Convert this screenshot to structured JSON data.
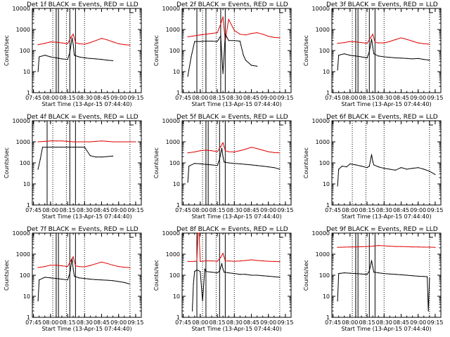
{
  "colors": {
    "events": "#000000",
    "lld": "#e00000",
    "axis": "#000000",
    "background": "#ffffff"
  },
  "shared": {
    "ylabel": "Counts/sec",
    "xlabel": "Start Time (13-Apr-15 07:44:40)",
    "x_ticks": [
      "07:45",
      "08:00",
      "08:15",
      "08:30",
      "08:45",
      "09:00",
      "09:15"
    ],
    "y_ticks": [
      "1",
      "10",
      "100",
      "1000",
      "10000"
    ],
    "y_scale": "log",
    "ylim": [
      1,
      10000
    ]
  },
  "chart_data": [
    {
      "type": "line",
      "title": "Det 1f BLACK = Events, RED = LLD",
      "x_minutes_range": [
        0,
        35
      ],
      "xlim": [
        "07:44",
        "09:20"
      ],
      "ylim": [
        1,
        10000
      ],
      "y_scale": "log",
      "dotted_lines": [
        "08:02",
        "08:14",
        "08:30",
        "09:10"
      ],
      "solid_lines": [
        "08:05",
        "08:07",
        "08:17",
        "08:22"
      ],
      "series": [
        {
          "color": "red",
          "x": [
            "07:49",
            "07:55",
            "08:00",
            "08:05",
            "08:10",
            "08:15",
            "08:18",
            "08:20",
            "08:22",
            "08:25",
            "08:30",
            "08:35",
            "08:40",
            "08:45",
            "08:50",
            "08:55",
            "09:00",
            "09:05",
            "09:10"
          ],
          "y": [
            190,
            220,
            260,
            250,
            230,
            210,
            420,
            600,
            240,
            210,
            200,
            240,
            300,
            380,
            320,
            260,
            210,
            190,
            180
          ]
        },
        {
          "color": "black",
          "x": [
            "07:49",
            "07:50",
            "07:55",
            "08:00",
            "08:05",
            "08:10",
            "08:15",
            "08:17",
            "08:19",
            "08:20",
            "08:21",
            "08:25",
            "08:30",
            "08:35",
            "08:40",
            "08:45",
            "08:50",
            "08:55"
          ],
          "y": [
            10,
            50,
            60,
            50,
            45,
            40,
            38,
            80,
            400,
            200,
            60,
            50,
            45,
            42,
            40,
            38,
            35,
            33
          ]
        }
      ]
    },
    {
      "type": "line",
      "title": "Det 2f BLACK = Events, RED = LLD",
      "xlim": [
        "07:44",
        "09:20"
      ],
      "ylim": [
        1,
        10000
      ],
      "y_scale": "log",
      "dotted_lines": [
        "08:02",
        "08:14",
        "08:30",
        "09:10"
      ],
      "solid_lines": [
        "07:57",
        "08:05",
        "08:18",
        "08:22"
      ],
      "series": [
        {
          "color": "red",
          "x": [
            "07:49",
            "07:55",
            "08:00",
            "08:05",
            "08:10",
            "08:15",
            "08:18",
            "08:20",
            "08:22",
            "08:25",
            "08:30",
            "08:35",
            "08:40",
            "08:45",
            "08:50",
            "08:55",
            "09:00",
            "09:05",
            "09:10"
          ],
          "y": [
            450,
            500,
            550,
            600,
            650,
            700,
            1800,
            4000,
            300,
            3000,
            900,
            600,
            550,
            650,
            700,
            600,
            480,
            420,
            400
          ]
        },
        {
          "color": "black",
          "x": [
            "07:49",
            "07:52",
            "07:55",
            "08:00",
            "08:05",
            "08:10",
            "08:15",
            "08:18",
            "08:20",
            "08:22",
            "08:25",
            "08:30",
            "08:35",
            "08:38",
            "08:40",
            "08:45",
            "08:50"
          ],
          "y": [
            6,
            50,
            270,
            270,
            280,
            280,
            270,
            500,
            8,
            600,
            300,
            300,
            280,
            60,
            35,
            20,
            18
          ]
        }
      ]
    },
    {
      "type": "line",
      "title": "Det 3f BLACK = Events, RED = LLD",
      "xlim": [
        "07:44",
        "09:20"
      ],
      "ylim": [
        1,
        10000
      ],
      "y_scale": "log",
      "dotted_lines": [
        "08:02",
        "08:14",
        "08:30",
        "09:10"
      ],
      "solid_lines": [
        "08:05",
        "08:07",
        "08:17",
        "08:22"
      ],
      "series": [
        {
          "color": "red",
          "x": [
            "07:49",
            "07:55",
            "08:00",
            "08:05",
            "08:10",
            "08:15",
            "08:18",
            "08:20",
            "08:22",
            "08:25",
            "08:30",
            "08:35",
            "08:40",
            "08:45",
            "08:50",
            "08:55",
            "09:00",
            "09:05",
            "09:10"
          ],
          "y": [
            220,
            240,
            270,
            260,
            240,
            220,
            400,
            600,
            250,
            230,
            230,
            270,
            330,
            400,
            340,
            280,
            230,
            210,
            200
          ]
        },
        {
          "color": "black",
          "x": [
            "07:49",
            "07:50",
            "07:55",
            "08:00",
            "08:05",
            "08:10",
            "08:15",
            "08:17",
            "08:19",
            "08:20",
            "08:21",
            "08:25",
            "08:30",
            "08:35",
            "08:40",
            "08:45",
            "08:50",
            "08:55",
            "09:00",
            "09:05",
            "09:10"
          ],
          "y": [
            12,
            60,
            70,
            60,
            55,
            50,
            45,
            90,
            350,
            150,
            70,
            55,
            50,
            48,
            45,
            44,
            42,
            40,
            42,
            38,
            35
          ]
        }
      ]
    },
    {
      "type": "line",
      "title": "Det 4f BLACK = Events, RED = LLD",
      "xlim": [
        "07:44",
        "09:20"
      ],
      "ylim": [
        1,
        10000
      ],
      "y_scale": "log",
      "dotted_lines": [
        "08:02",
        "08:14",
        "08:30",
        "09:10"
      ],
      "solid_lines": [
        "07:57",
        "08:17",
        "08:22"
      ],
      "series": [
        {
          "color": "red",
          "x": [
            "07:49",
            "07:55",
            "08:00",
            "08:05",
            "08:10",
            "08:15",
            "08:20",
            "08:25",
            "08:30",
            "08:35",
            "08:40",
            "08:45",
            "08:50",
            "08:55",
            "09:00",
            "09:05",
            "09:10",
            "09:15"
          ],
          "y": [
            1000,
            1050,
            1100,
            1100,
            1100,
            1050,
            1000,
            1000,
            1000,
            1000,
            1050,
            1100,
            1050,
            1000,
            1000,
            1000,
            1000,
            1000
          ]
        },
        {
          "color": "black",
          "x": [
            "07:49",
            "07:51",
            "07:53",
            "08:00",
            "08:05",
            "08:10",
            "08:15",
            "08:20",
            "08:25",
            "08:30",
            "08:35",
            "08:40",
            "08:45",
            "08:50",
            "08:55"
          ],
          "y": [
            50,
            150,
            550,
            560,
            560,
            560,
            560,
            560,
            560,
            560,
            220,
            190,
            190,
            200,
            210
          ]
        }
      ]
    },
    {
      "type": "line",
      "title": "Det 5f BLACK = Events, RED = LLD",
      "xlim": [
        "07:44",
        "09:20"
      ],
      "ylim": [
        1,
        10000
      ],
      "y_scale": "log",
      "dotted_lines": [
        "08:02",
        "08:14",
        "08:30",
        "09:10"
      ],
      "solid_lines": [
        "08:05",
        "08:07",
        "08:17",
        "08:22"
      ],
      "series": [
        {
          "color": "red",
          "x": [
            "07:49",
            "07:55",
            "08:00",
            "08:05",
            "08:10",
            "08:15",
            "08:18",
            "08:20",
            "08:22",
            "08:25",
            "08:30",
            "08:35",
            "08:40",
            "08:45",
            "08:50",
            "08:55",
            "09:00",
            "09:05",
            "09:10"
          ],
          "y": [
            300,
            330,
            380,
            400,
            380,
            340,
            600,
            900,
            380,
            340,
            330,
            380,
            450,
            550,
            480,
            400,
            340,
            310,
            300
          ]
        },
        {
          "color": "black",
          "x": [
            "07:49",
            "07:50",
            "07:55",
            "08:00",
            "08:05",
            "08:10",
            "08:15",
            "08:17",
            "08:19",
            "08:20",
            "08:21",
            "08:25",
            "08:30",
            "08:35",
            "08:40",
            "08:45",
            "08:50",
            "08:55",
            "09:00",
            "09:05",
            "09:10"
          ],
          "y": [
            12,
            70,
            95,
            90,
            85,
            80,
            75,
            150,
            500,
            200,
            110,
            100,
            95,
            90,
            85,
            80,
            75,
            70,
            65,
            60,
            50
          ]
        }
      ]
    },
    {
      "type": "line",
      "title": "Det 6f BLACK = Events, RED = LLD",
      "xlim": [
        "07:44",
        "09:20"
      ],
      "ylim": [
        1,
        10000
      ],
      "y_scale": "log",
      "dotted_lines": [
        "08:02",
        "08:14",
        "08:30",
        "09:10"
      ],
      "solid_lines": [],
      "series": [
        {
          "color": "black",
          "x": [
            "07:49",
            "07:50",
            "07:53",
            "07:57",
            "08:00",
            "08:05",
            "08:10",
            "08:15",
            "08:17",
            "08:19",
            "08:20",
            "08:21",
            "08:25",
            "08:30",
            "08:35",
            "08:40",
            "08:45",
            "08:50",
            "08:55",
            "09:00",
            "09:05",
            "09:10",
            "09:15"
          ],
          "y": [
            8,
            50,
            70,
            65,
            90,
            80,
            70,
            60,
            70,
            250,
            120,
            80,
            65,
            55,
            50,
            45,
            60,
            50,
            55,
            60,
            50,
            40,
            28
          ]
        }
      ]
    },
    {
      "type": "line",
      "title": "Det 7f BLACK = Events, RED = LLD",
      "xlim": [
        "07:44",
        "09:20"
      ],
      "ylim": [
        1,
        10000
      ],
      "y_scale": "log",
      "dotted_lines": [
        "08:02",
        "08:14",
        "08:30",
        "09:10"
      ],
      "solid_lines": [
        "08:05",
        "08:07",
        "08:17",
        "08:22"
      ],
      "series": [
        {
          "color": "red",
          "x": [
            "07:49",
            "07:55",
            "08:00",
            "08:05",
            "08:10",
            "08:15",
            "08:18",
            "08:20",
            "08:22",
            "08:25",
            "08:30",
            "08:35",
            "08:40",
            "08:45",
            "08:50",
            "08:55",
            "09:00",
            "09:05",
            "09:10"
          ],
          "y": [
            230,
            260,
            300,
            300,
            280,
            260,
            500,
            750,
            280,
            260,
            250,
            290,
            350,
            420,
            360,
            300,
            260,
            240,
            230
          ]
        },
        {
          "color": "black",
          "x": [
            "07:49",
            "07:50",
            "07:55",
            "08:00",
            "08:05",
            "08:10",
            "08:15",
            "08:17",
            "08:19",
            "08:20",
            "08:21",
            "08:25",
            "08:30",
            "08:35",
            "08:40",
            "08:45",
            "08:50",
            "08:55",
            "09:00",
            "09:05",
            "09:10"
          ],
          "y": [
            6,
            60,
            80,
            75,
            70,
            65,
            60,
            120,
            600,
            200,
            90,
            75,
            70,
            65,
            62,
            60,
            58,
            55,
            50,
            45,
            38
          ]
        }
      ]
    },
    {
      "type": "line",
      "title": "Det 8f BLACK = Events, RED = LLD",
      "xlim": [
        "07:44",
        "09:20"
      ],
      "ylim": [
        1,
        10000
      ],
      "y_scale": "log",
      "dotted_lines": [
        "08:02",
        "08:14",
        "08:30",
        "09:10"
      ],
      "solid_lines": [
        "07:57",
        "08:05",
        "08:17",
        "08:22"
      ],
      "series": [
        {
          "color": "red",
          "x": [
            "07:49",
            "07:55",
            "07:57",
            "07:58",
            "07:59",
            "08:00",
            "08:05",
            "08:10",
            "08:15",
            "08:18",
            "08:20",
            "08:22",
            "08:25",
            "08:30",
            "08:35",
            "08:40",
            "08:45",
            "08:50",
            "08:55",
            "09:00",
            "09:05",
            "09:10"
          ],
          "y": [
            450,
            450,
            480,
            10000,
            10000,
            450,
            480,
            480,
            460,
            700,
            1100,
            480,
            470,
            460,
            470,
            500,
            540,
            500,
            480,
            460,
            450,
            440
          ]
        },
        {
          "color": "black",
          "x": [
            "07:53",
            "07:54",
            "07:55",
            "07:57",
            "08:00",
            "08:02",
            "08:04",
            "08:05",
            "08:10",
            "08:15",
            "08:17",
            "08:19",
            "08:20",
            "08:21",
            "08:25",
            "08:30",
            "08:35",
            "08:40",
            "08:45",
            "08:50",
            "08:55",
            "09:00",
            "09:05",
            "09:10"
          ],
          "y": [
            2,
            40,
            150,
            180,
            150,
            6,
            200,
            150,
            140,
            130,
            160,
            350,
            200,
            140,
            130,
            120,
            110,
            110,
            100,
            100,
            95,
            90,
            85,
            80
          ]
        }
      ]
    },
    {
      "type": "line",
      "title": "Det 9f BLACK = Events, RED = LLD",
      "xlim": [
        "07:44",
        "09:20"
      ],
      "ylim": [
        1,
        10000
      ],
      "y_scale": "log",
      "dotted_lines": [
        "08:02",
        "08:14",
        "08:30",
        "09:10"
      ],
      "solid_lines": [
        "08:05",
        "08:07",
        "08:17",
        "08:22"
      ],
      "series": [
        {
          "color": "red",
          "x": [
            "07:49",
            "07:55",
            "08:00",
            "08:05",
            "08:10",
            "08:15",
            "08:20",
            "08:25",
            "08:30",
            "08:35",
            "08:40",
            "08:45",
            "08:50",
            "08:55",
            "09:00",
            "09:05",
            "09:10",
            "09:15"
          ],
          "y": [
            2100,
            2150,
            2200,
            2200,
            2250,
            2300,
            2400,
            2600,
            2500,
            2400,
            2300,
            2300,
            2250,
            2200,
            2200,
            2150,
            2150,
            2100
          ]
        },
        {
          "color": "black",
          "x": [
            "07:49",
            "07:50",
            "07:55",
            "08:00",
            "08:05",
            "08:10",
            "08:15",
            "08:17",
            "08:19",
            "08:20",
            "08:21",
            "08:25",
            "08:30",
            "08:35",
            "08:40",
            "08:45",
            "08:50",
            "08:55",
            "09:00",
            "09:05",
            "09:08",
            "09:09",
            "09:10"
          ],
          "y": [
            6,
            120,
            130,
            125,
            120,
            115,
            110,
            160,
            500,
            250,
            140,
            130,
            120,
            115,
            110,
            105,
            100,
            95,
            90,
            88,
            85,
            2,
            70
          ]
        }
      ]
    }
  ]
}
